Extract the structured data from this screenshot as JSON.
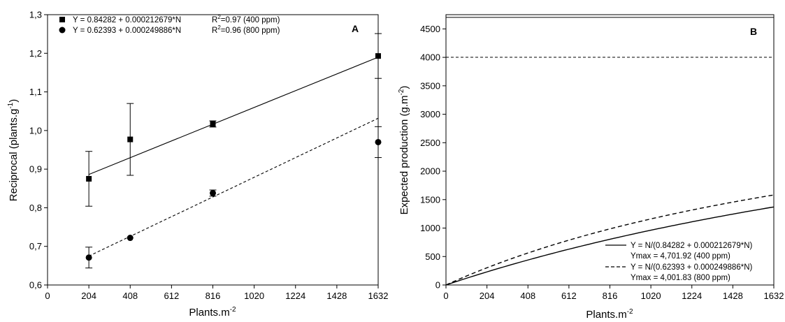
{
  "chart_data": [
    {
      "type": "scatter",
      "panel_label": "A",
      "xlabel": "Plants.m",
      "xlabel_sup": "-2",
      "ylabel": "Reciprocal (plants.g",
      "ylabel_sup": "-1",
      "ylabel_end": ")",
      "xlim": [
        0,
        1632
      ],
      "ylim": [
        0.6,
        1.3
      ],
      "xticks": [
        0,
        204,
        408,
        612,
        816,
        1020,
        1224,
        1428,
        1632
      ],
      "xtick_labels": [
        "0",
        "204",
        "408",
        "612",
        "816",
        "1020",
        "1224",
        "1428",
        "1632"
      ],
      "yticks": [
        0.6,
        0.7,
        0.8,
        0.9,
        1.0,
        1.1,
        1.2,
        1.3
      ],
      "ytick_labels": [
        "0,6",
        "0,7",
        "0,8",
        "0,9",
        "1,0",
        "1,1",
        "1,2",
        "1,3"
      ],
      "grid": false,
      "legend_position": "top-left",
      "series": [
        {
          "marker": "square",
          "line": "solid",
          "x": [
            204,
            408,
            816,
            1632
          ],
          "y": [
            0.875,
            0.977,
            1.017,
            1.193
          ],
          "err": [
            0.071,
            0.093,
            0.008,
            0.058
          ],
          "fit": {
            "intercept": 0.84282,
            "slope": 0.000212679
          },
          "equation": "Y = 0.84282 + 0.000212679*N",
          "r2_prefix": "R",
          "r2_sup": "2",
          "r2_suffix": "=0.97 (400 ppm)"
        },
        {
          "marker": "circle",
          "line": "dashed",
          "x": [
            204,
            408,
            816,
            1632
          ],
          "y": [
            0.671,
            0.722,
            0.838,
            0.97
          ],
          "err": [
            0.027,
            0.0,
            0.008,
            0.04
          ],
          "fit": {
            "intercept": 0.62393,
            "slope": 0.000249886
          },
          "equation": "Y = 0.62393 + 0.000249886*N",
          "r2_prefix": "R",
          "r2_sup": "2",
          "r2_suffix": "=0.96 (800 ppm)"
        }
      ]
    },
    {
      "type": "line",
      "panel_label": "B",
      "xlabel": "Plants.m",
      "xlabel_sup": "-2",
      "ylabel": "Expected production (g.m",
      "ylabel_sup": "-2",
      "ylabel_end": ")",
      "xlim": [
        0,
        1632
      ],
      "ylim": [
        0,
        4750
      ],
      "xticks": [
        0,
        204,
        408,
        612,
        816,
        1020,
        1224,
        1428,
        1632
      ],
      "xtick_labels": [
        "0",
        "204",
        "408",
        "612",
        "816",
        "1020",
        "1224",
        "1428",
        "1632"
      ],
      "yticks": [
        0,
        500,
        1000,
        1500,
        2000,
        2500,
        3000,
        3500,
        4000,
        4500
      ],
      "ytick_labels": [
        "0",
        "500",
        "1000",
        "1500",
        "2000",
        "2500",
        "3000",
        "3500",
        "4000",
        "4500"
      ],
      "grid": false,
      "legend_position": "bottom-right",
      "series": [
        {
          "line": "solid",
          "model": {
            "a": 0.84282,
            "b": 0.000212679
          },
          "ymax_value": 4701.92,
          "equation": "Y = N/(0.84282 + 0.000212679*N)",
          "ymax_label": "Ymax = 4,701.92 (400 ppm)"
        },
        {
          "line": "dashed",
          "model": {
            "a": 0.62393,
            "b": 0.000249886
          },
          "ymax_value": 4001.83,
          "equation": "Y = N/(0.62393 + 0.000249886*N)",
          "ymax_label": "Ymax = 4,001.83 (800 ppm)"
        }
      ]
    }
  ]
}
